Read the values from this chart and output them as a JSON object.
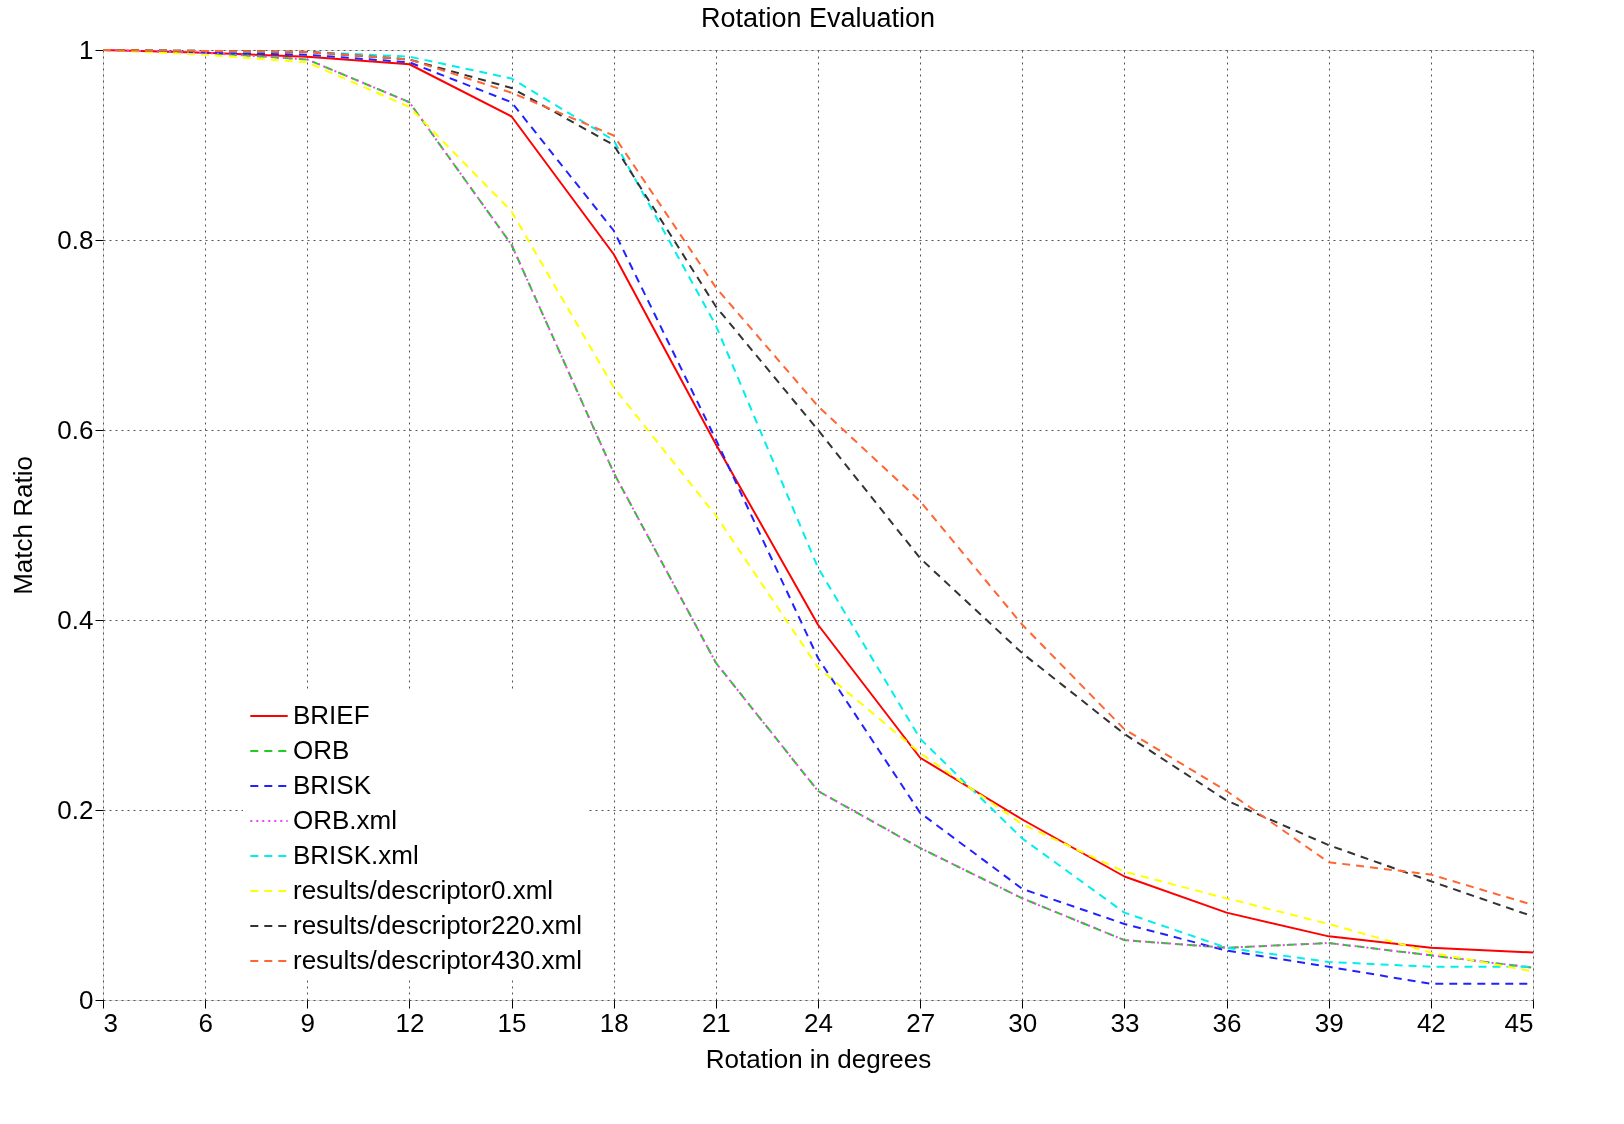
{
  "chart_data": {
    "type": "line",
    "title": "Rotation Evaluation",
    "xlabel": "Rotation in degrees",
    "ylabel": "Match Ratio",
    "x": [
      3,
      6,
      9,
      12,
      15,
      18,
      21,
      24,
      27,
      30,
      33,
      36,
      39,
      42,
      45
    ],
    "xlim": [
      3,
      45
    ],
    "xticks": [
      3,
      6,
      9,
      12,
      15,
      18,
      21,
      24,
      27,
      30,
      33,
      36,
      39,
      42,
      45
    ],
    "ylim": [
      0,
      1
    ],
    "yticks": [
      0,
      0.2,
      0.4,
      0.6,
      0.8,
      1
    ],
    "grid": true,
    "legend": "bottom left",
    "marker": "none",
    "series": [
      {
        "name": "BRIEF",
        "color": "#ff0000",
        "line_style": "solid",
        "values": [
          1,
          0.997,
          0.993,
          0.985,
          0.93,
          0.785,
          0.585,
          0.395,
          0.255,
          0.19,
          0.13,
          0.092,
          0.067,
          0.055,
          0.05
        ]
      },
      {
        "name": "ORB",
        "color": "#22cc22",
        "line_style": "dashed",
        "values": [
          1,
          0.997,
          0.99,
          0.945,
          0.795,
          0.555,
          0.355,
          0.22,
          0.16,
          0.107,
          0.063,
          0.055,
          0.06,
          0.047,
          0.034
        ]
      },
      {
        "name": "BRISK",
        "color": "#2222ff",
        "line_style": "dashed",
        "values": [
          1,
          0.997,
          0.995,
          0.987,
          0.945,
          0.81,
          0.59,
          0.36,
          0.197,
          0.117,
          0.08,
          0.052,
          0.035,
          0.017,
          0.017
        ]
      },
      {
        "name": "ORB.xml",
        "color": "#ee44ee",
        "line_style": "dotted",
        "values": [
          1,
          0.997,
          0.99,
          0.945,
          0.795,
          0.555,
          0.355,
          0.22,
          0.16,
          0.107,
          0.063,
          0.055,
          0.06,
          0.047,
          0.034
        ]
      },
      {
        "name": "BRISK.xml",
        "color": "#00eeee",
        "line_style": "dashed",
        "values": [
          1,
          0.999,
          0.998,
          0.993,
          0.97,
          0.905,
          0.71,
          0.455,
          0.275,
          0.17,
          0.092,
          0.055,
          0.04,
          0.035,
          0.035
        ]
      },
      {
        "name": "results/descriptor0.xml",
        "color": "#ffff00",
        "line_style": "dashed",
        "values": [
          1,
          0.995,
          0.987,
          0.94,
          0.83,
          0.645,
          0.51,
          0.35,
          0.26,
          0.185,
          0.135,
          0.107,
          0.08,
          0.05,
          0.03
        ]
      },
      {
        "name": "results/descriptor220.xml",
        "color": "#333333",
        "line_style": "dashed",
        "values": [
          1,
          0.999,
          0.998,
          0.99,
          0.96,
          0.9,
          0.73,
          0.6,
          0.465,
          0.365,
          0.28,
          0.21,
          0.163,
          0.125,
          0.088
        ]
      },
      {
        "name": "results/descriptor430.xml",
        "color": "#ff6633",
        "line_style": "dashed",
        "values": [
          1,
          0.999,
          0.998,
          0.99,
          0.955,
          0.91,
          0.75,
          0.625,
          0.525,
          0.395,
          0.285,
          0.22,
          0.145,
          0.132,
          0.1
        ]
      }
    ]
  }
}
